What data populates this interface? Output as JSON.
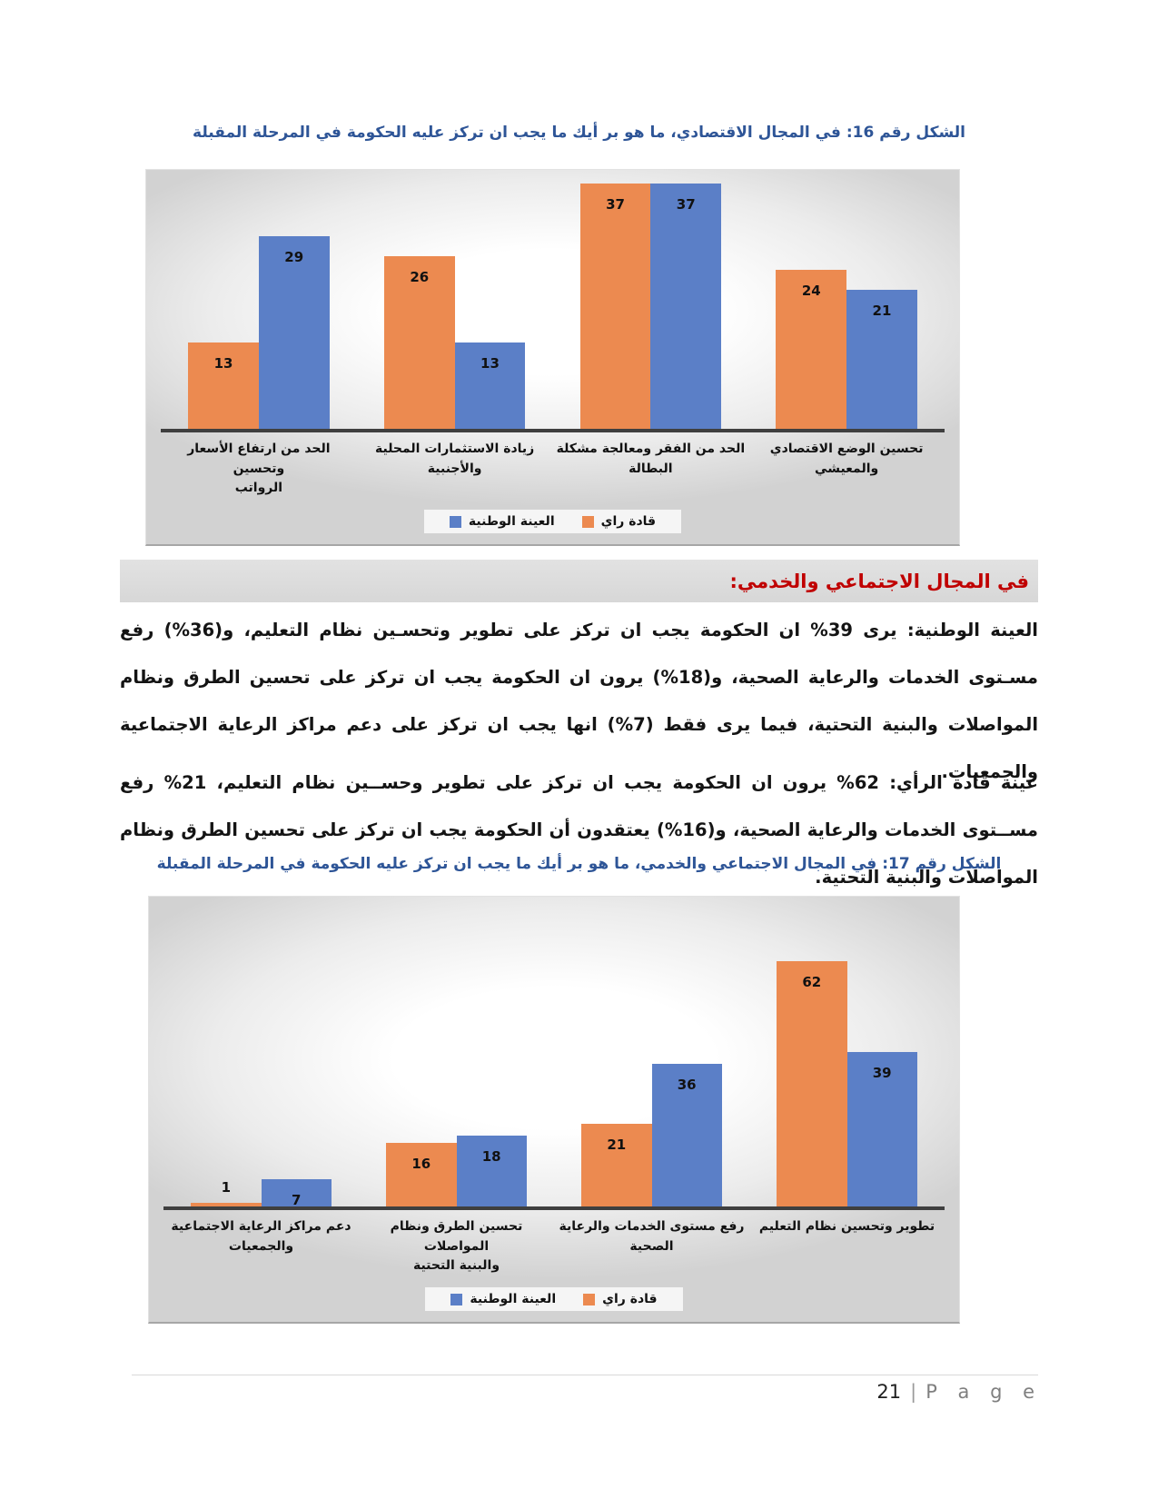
{
  "page": {
    "footer": {
      "page_number": "21",
      "separator": "|",
      "page_word": "P a g e"
    }
  },
  "sections": {
    "social_services": {
      "heading": "في المجال الاجتماعي والخدمي:",
      "paragraphs": [
        "العينة الوطنية: يرى 39% ان الحكومة يجب ان تركز على تطوير وتحسـين نظام التعليم، و(36%) رفع مسـتوى الخدمات والرعاية الصحية، و(18%) يرون ان الحكومة يجب ان تركز على تحسين الطرق ونظام المواصلات والبنية التحتية، فيما يرى فقط (7%) انها يجب ان تركز على دعم مراكز الرعاية الاجتماعية والجمعيات.",
        "عينة قادة الرأي: 62% يرون ان الحكومة يجب ان تركز على تطوير وحســين نظام التعليم، 21% رفع مســتوى الخدمات والرعاية الصحية، و(16%) يعتقدون أن الحكومة يجب ان تركز على تحسين الطرق ونظام المواصلات والبنية التحتية."
      ]
    }
  },
  "colors": {
    "series_orange": "#EC8A50",
    "series_blue": "#5B7FC7",
    "caption_blue": "#2E5597",
    "heading_red": "#C00000"
  },
  "chart_data": [
    {
      "type": "bar",
      "title": "الشكل رقم  16: في المجال الاقتصادي، ما هو بر أيك ما يجب ان تركز عليه الحكومة في المرحلة المقبلة",
      "direction": "rtl",
      "grid": false,
      "legend_position": "bottom",
      "xlabel": "",
      "ylabel": "",
      "ylim": [
        0,
        40
      ],
      "categories": [
        "الحد من ارتفاع الأسعار وتحسين\nالرواتب",
        "زيادة الاستثمارات المحلية والأجنبية",
        "الحد من الفقر ومعالجة مشكلة\nالبطالة",
        "تحسين الوضع الاقتصادي والمعيشي"
      ],
      "series": [
        {
          "name": "قادة راي",
          "color": "#EC8A50",
          "values": [
            13,
            26,
            37,
            24
          ]
        },
        {
          "name": "العينة الوطنية",
          "color": "#5B7FC7",
          "values": [
            29,
            13,
            37,
            21
          ]
        }
      ],
      "legend": [
        {
          "label": "العينة الوطنية",
          "color": "#5B7FC7"
        },
        {
          "label": "قادة راي",
          "color": "#EC8A50"
        }
      ]
    },
    {
      "type": "bar",
      "title": "الشكل رقم  17: في المجال الاجتماعي والخدمي، ما هو بر أيك ما يجب ان تركز عليه الحكومة في المرحلة المقبلة",
      "direction": "rtl",
      "grid": false,
      "legend_position": "bottom",
      "xlabel": "",
      "ylabel": "",
      "ylim": [
        0,
        80
      ],
      "categories": [
        "دعم مراكز الرعاية الاجتماعية\nوالجمعيات",
        "تحسين الطرق ونظام المواصلات\nوالبنية التحتية",
        "رفع مستوى الخدمات والرعاية\nالصحية",
        "تطوير وتحسين نظام التعليم"
      ],
      "series": [
        {
          "name": "قادة راي",
          "color": "#EC8A50",
          "values": [
            1,
            16,
            21,
            62
          ]
        },
        {
          "name": "العينة الوطنية",
          "color": "#5B7FC7",
          "values": [
            7,
            18,
            36,
            39
          ]
        }
      ],
      "legend": [
        {
          "label": "العينة الوطنية",
          "color": "#5B7FC7"
        },
        {
          "label": "قادة راي",
          "color": "#EC8A50"
        }
      ]
    }
  ]
}
